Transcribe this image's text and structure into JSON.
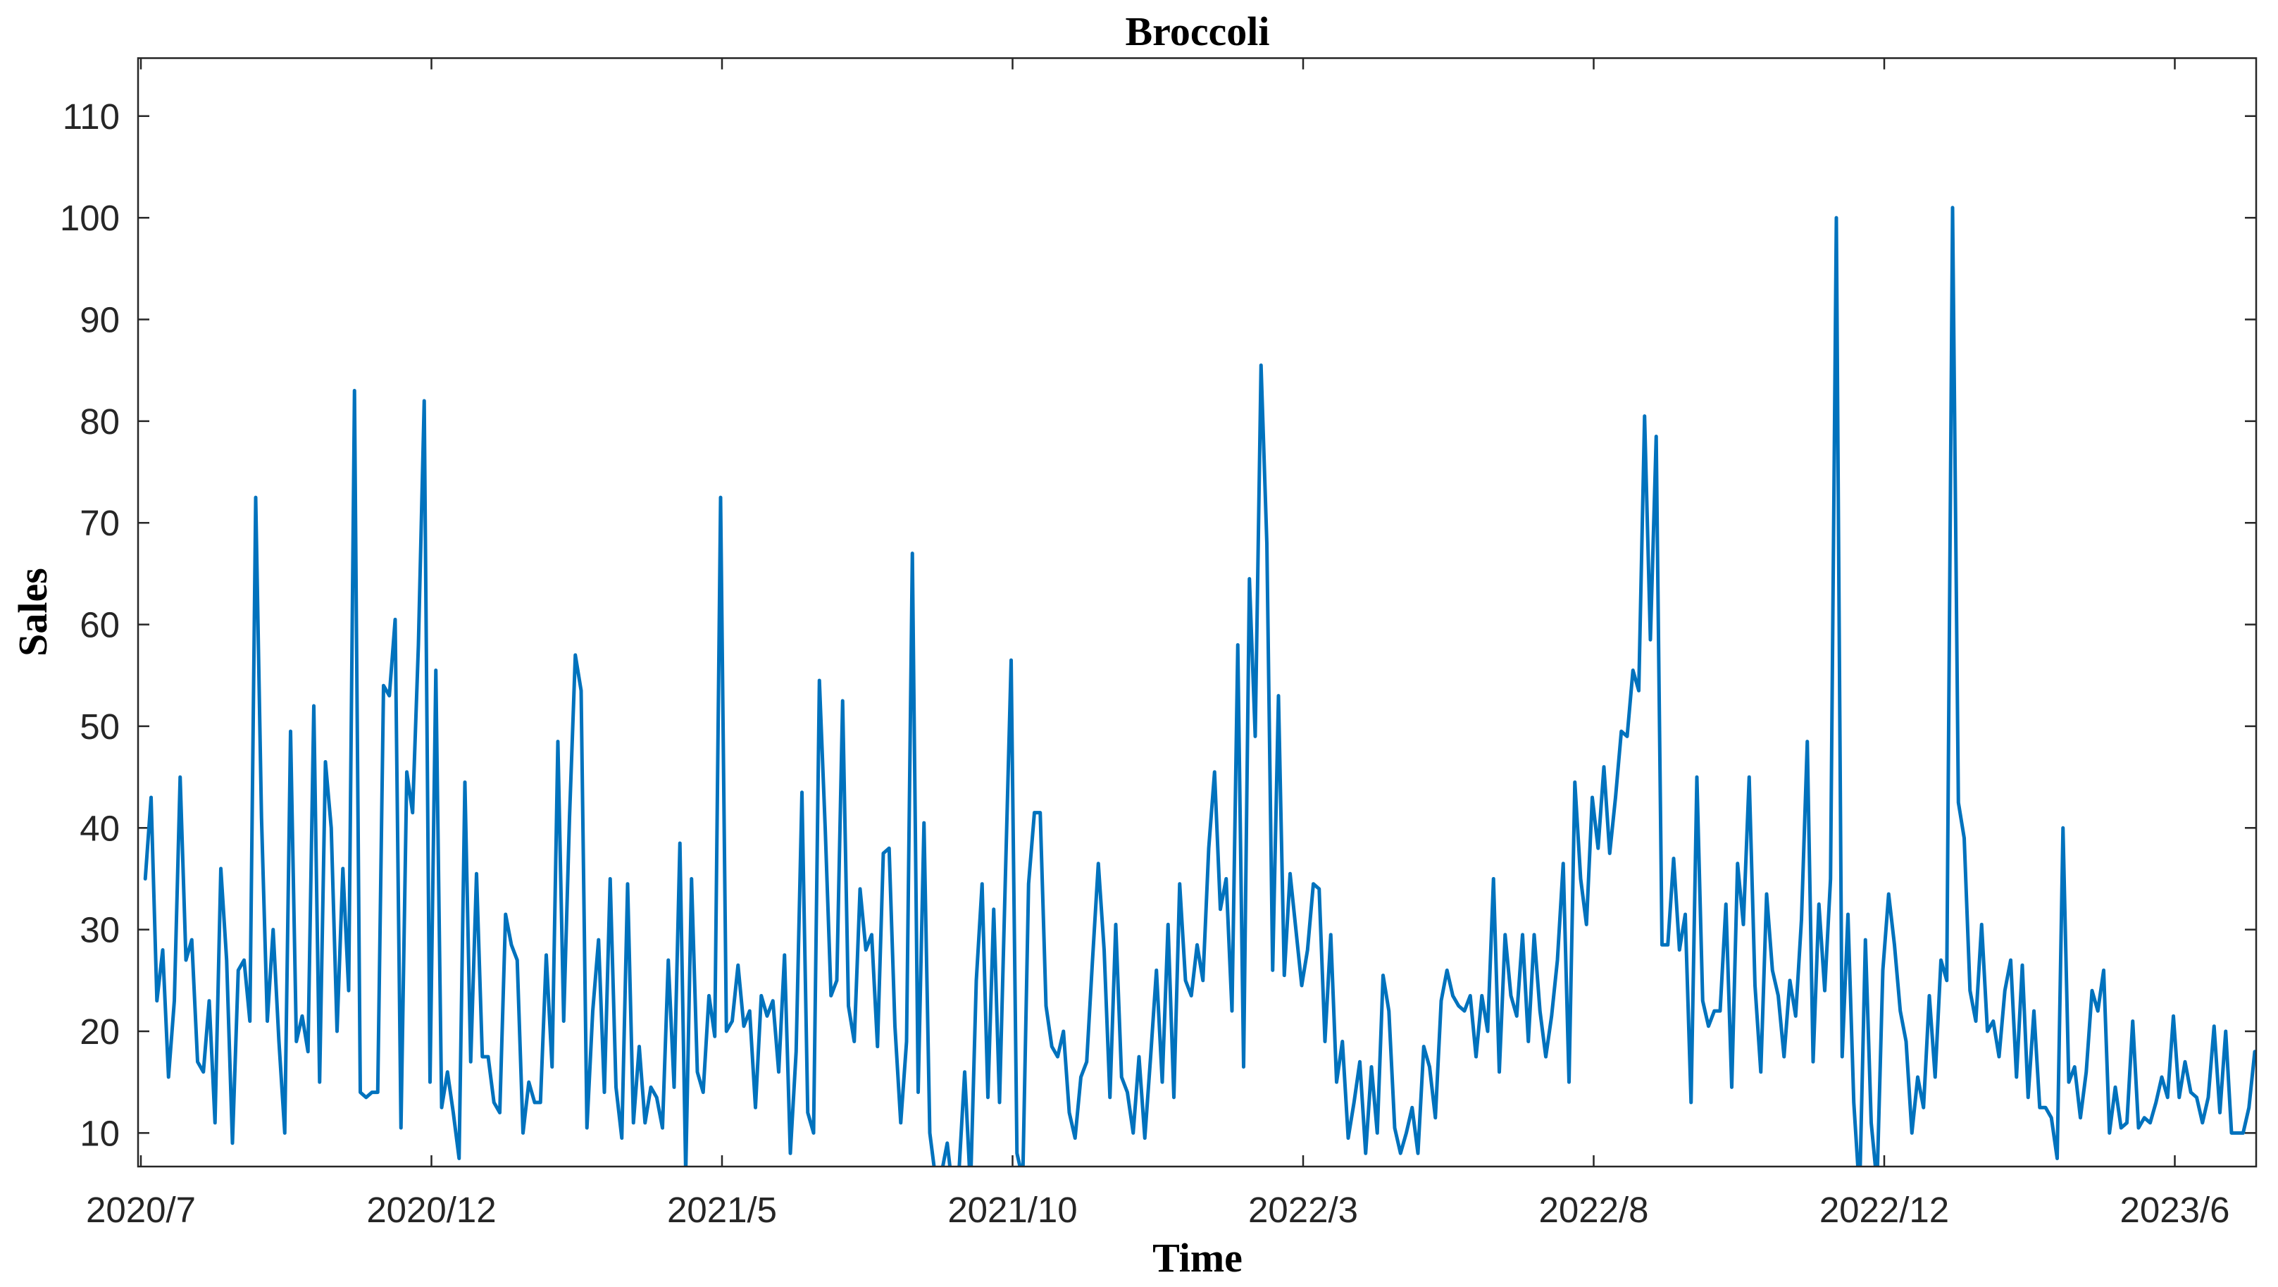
{
  "chart_data": {
    "type": "line",
    "title": "Broccoli",
    "xlabel": "Time",
    "ylabel": "Sales",
    "x_tick_labels": [
      "2020/7",
      "2020/12",
      "2021/5",
      "2021/10",
      "2022/3",
      "2022/8",
      "2022/12",
      "2023/6"
    ],
    "yticks": [
      10,
      20,
      30,
      40,
      50,
      60,
      70,
      80,
      90,
      100,
      110
    ],
    "ylim": [
      6.7,
      115.7
    ],
    "grid": false,
    "line_color": "#0072BD",
    "series": [
      {
        "values": [
          35,
          43,
          23,
          28,
          15.5,
          23,
          45,
          27,
          29,
          17,
          16,
          23,
          11,
          36,
          27,
          9,
          26,
          27,
          21,
          72.5,
          41,
          21,
          30,
          19,
          10,
          49.5,
          19,
          21.5,
          18,
          52,
          15,
          46.5,
          40,
          20,
          36,
          24,
          83,
          14,
          13.5,
          14,
          14,
          54,
          53,
          60.5,
          10.5,
          45.5,
          41.5,
          58,
          82,
          15,
          55.5,
          12.5,
          16,
          12,
          7.5,
          44.5,
          17,
          35.5,
          17.5,
          17.5,
          13,
          12,
          31.5,
          28.5,
          27,
          10,
          15,
          13,
          13,
          27.5,
          16.5,
          48.5,
          21,
          41,
          57,
          53.5,
          10.5,
          22,
          29,
          14,
          35,
          14.5,
          9.5,
          34.5,
          11,
          18.5,
          11,
          14.5,
          13.5,
          10.5,
          27,
          14.5,
          38.5,
          6,
          35,
          16,
          14,
          23.5,
          19.5,
          72.5,
          20,
          21,
          26.5,
          20.5,
          22,
          12.5,
          23.5,
          21.5,
          23,
          16,
          27.5,
          8,
          18,
          43.5,
          12,
          10,
          54.5,
          40,
          23.5,
          25,
          52.5,
          22.5,
          19,
          34,
          28,
          29.5,
          18.5,
          37.5,
          38,
          20.5,
          11,
          19,
          67,
          14,
          40.5,
          10,
          5.5,
          6,
          9,
          4,
          6,
          16,
          4.5,
          25,
          34.5,
          13.5,
          32,
          13,
          35,
          56.5,
          8,
          5.5,
          34.5,
          41.5,
          41.5,
          22.5,
          18.5,
          17.5,
          20,
          12,
          9.5,
          15.5,
          17,
          27,
          36.5,
          28,
          13.5,
          30.5,
          15.5,
          14,
          10,
          17.5,
          9.5,
          17.5,
          26,
          15,
          30.5,
          13.5,
          34.5,
          25,
          23.5,
          28.5,
          25,
          38,
          45.5,
          32,
          35,
          22,
          58,
          16.5,
          64.5,
          49,
          85.5,
          68,
          26,
          53,
          25.5,
          35.5,
          30,
          24.5,
          28,
          34.5,
          34,
          19,
          29.5,
          15,
          19,
          9.5,
          13,
          17,
          8,
          16.5,
          10,
          25.5,
          22,
          10.5,
          8,
          10,
          12.5,
          8,
          18.5,
          16.5,
          11.5,
          23,
          26,
          23.5,
          22.5,
          22,
          23.5,
          17.5,
          23.5,
          20,
          35,
          16,
          29.5,
          23.5,
          21.5,
          29.5,
          19,
          29.5,
          22,
          17.5,
          21.5,
          27,
          36.5,
          15,
          44.5,
          35,
          30.5,
          43,
          38,
          46,
          37.5,
          43,
          49.5,
          49,
          55.5,
          53.5,
          80.5,
          58.5,
          78.5,
          28.5,
          28.5,
          37,
          28,
          31.5,
          13,
          45,
          23,
          20.5,
          22,
          22,
          32.5,
          14.5,
          36.5,
          30.5,
          45,
          24.5,
          16,
          33.5,
          26,
          23.5,
          17.5,
          25,
          21.5,
          31,
          48.5,
          17,
          32.5,
          24,
          35,
          100,
          17.5,
          31.5,
          13,
          4,
          29,
          11,
          5,
          26,
          33.5,
          28.5,
          22,
          19,
          10,
          15.5,
          12.5,
          23.5,
          15.5,
          27,
          25,
          101,
          42.5,
          39,
          24,
          21,
          30.5,
          20,
          21,
          17.5,
          24,
          27,
          15.5,
          26.5,
          13.5,
          22,
          12.5,
          12.5,
          11.5,
          7.5,
          40,
          15,
          16.5,
          11.5,
          16,
          24,
          22,
          26,
          10,
          14.5,
          10.5,
          11,
          21,
          10.5,
          11.5,
          11,
          13,
          15.5,
          13.5,
          21.5,
          13.5,
          17,
          14,
          13.5,
          11,
          13.5,
          20.5,
          12,
          20,
          10,
          10,
          10,
          12.5,
          18
        ]
      }
    ]
  }
}
